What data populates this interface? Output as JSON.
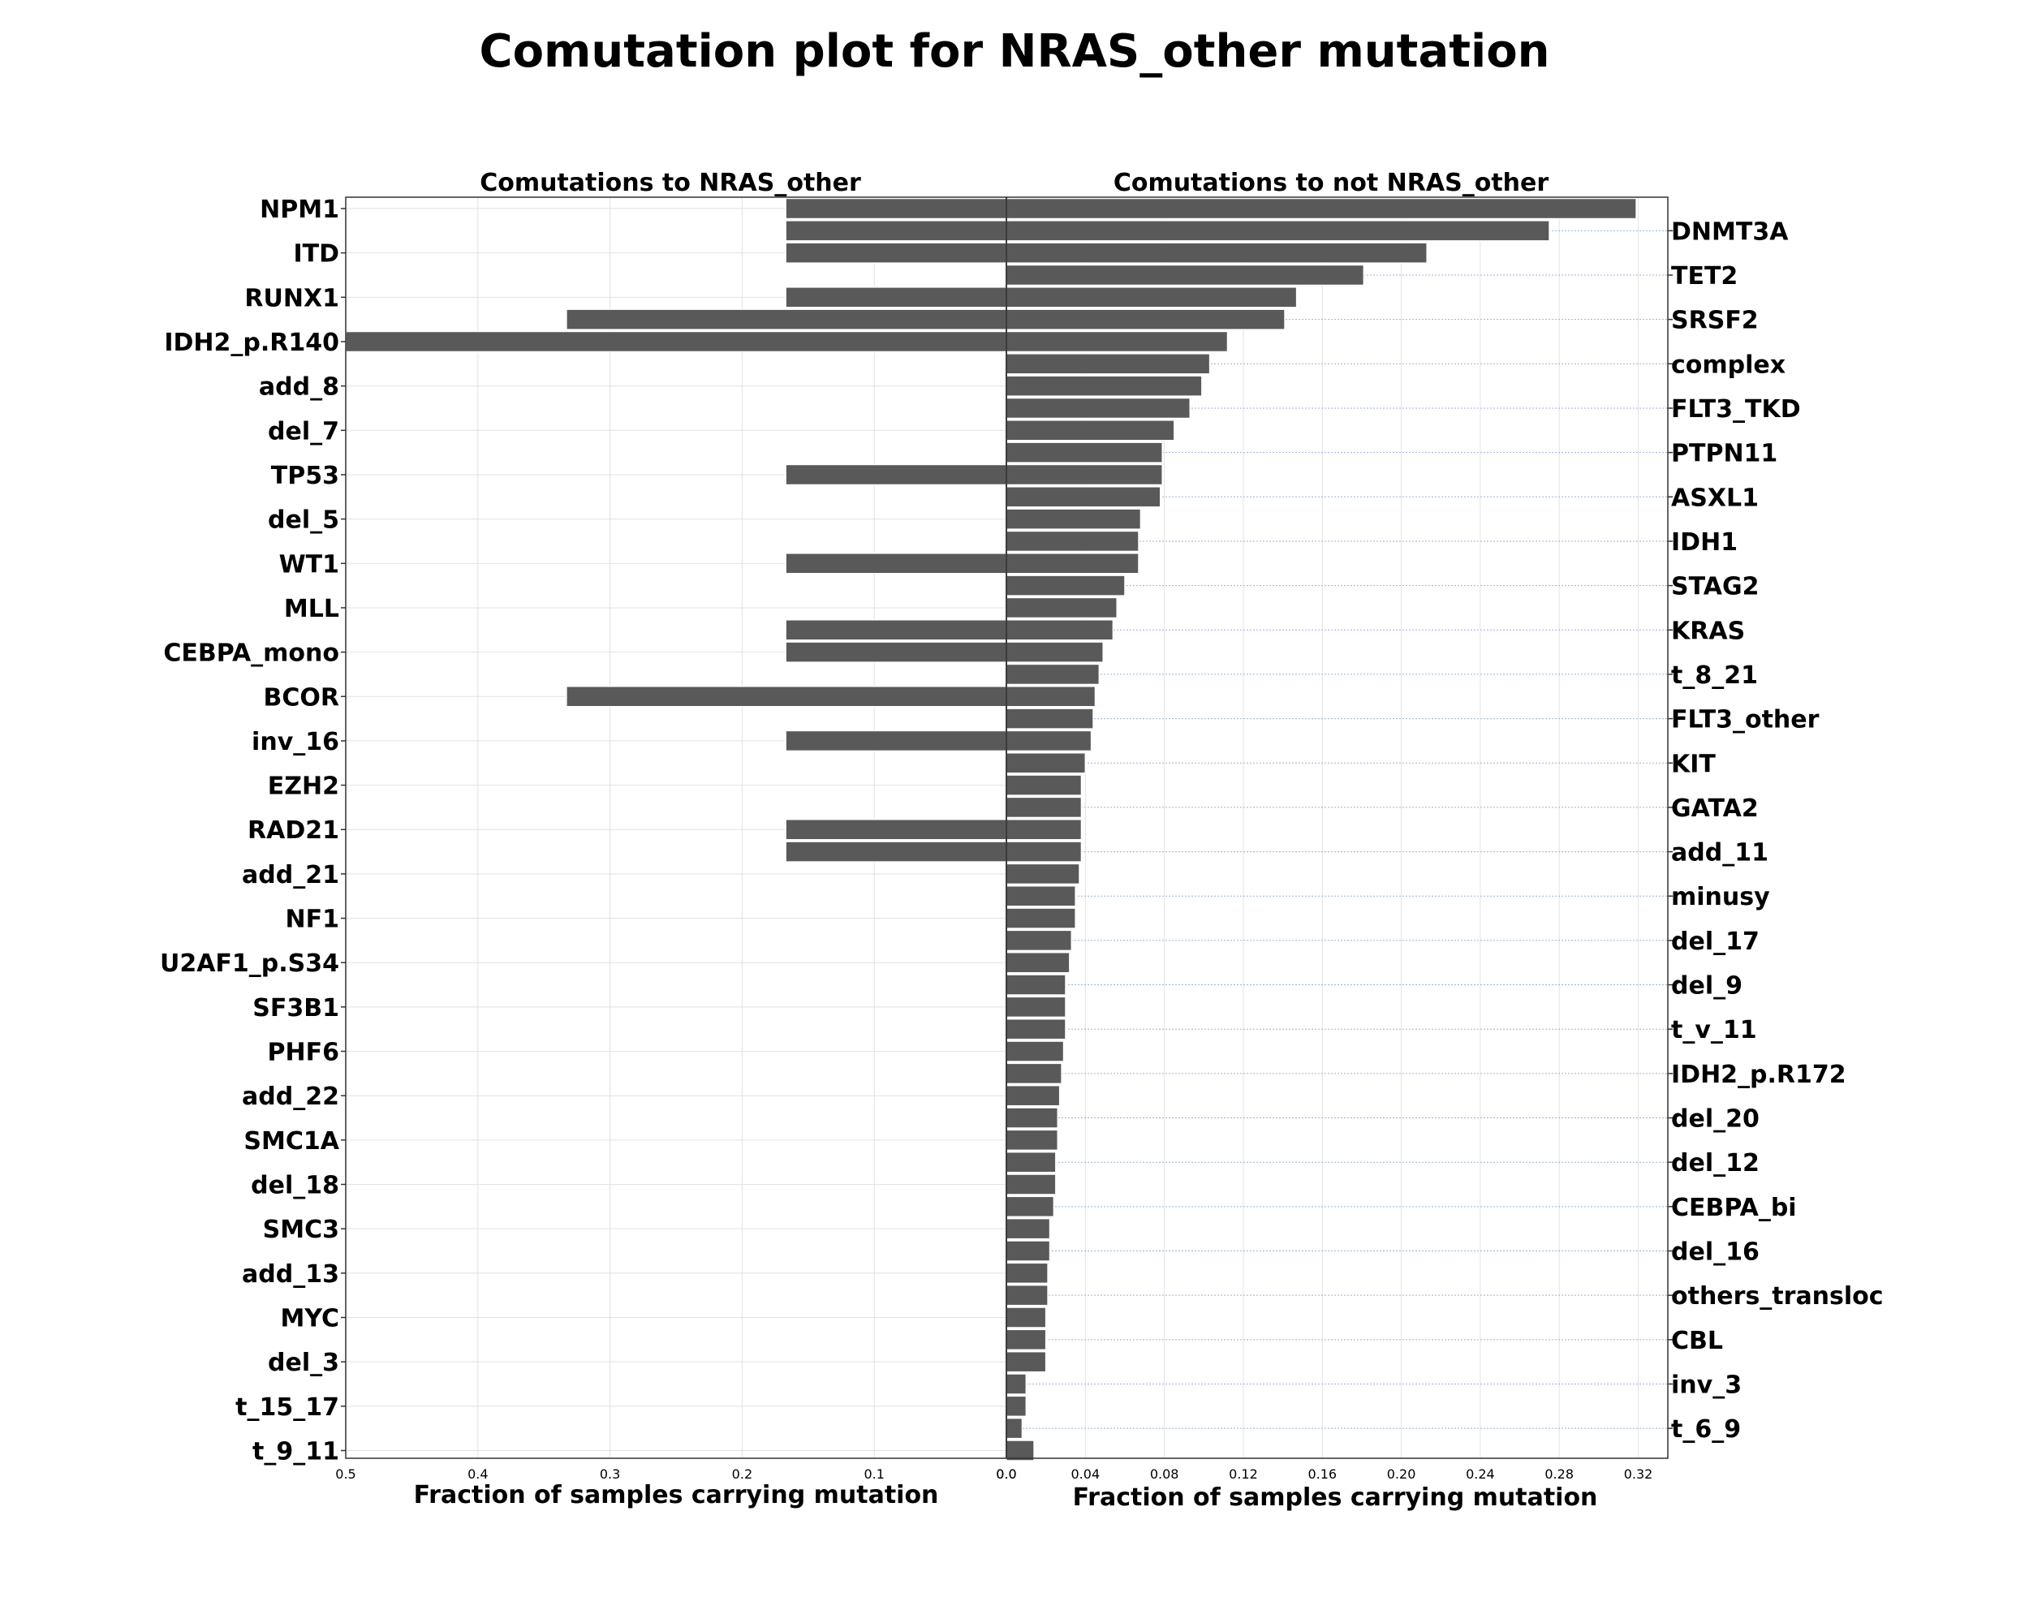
{
  "chart_data": {
    "type": "bar",
    "title": "Comutation plot for NRAS_other mutation",
    "panels": [
      {
        "name": "left",
        "subtitle": "Comutations to NRAS_other",
        "xlabel": "Fraction of samples carrying mutation",
        "xlim": [
          0.5,
          0.0
        ],
        "ticks": [
          0.5,
          0.4,
          0.3,
          0.2,
          0.1,
          0.0
        ],
        "tick_labels": [
          "0.5",
          "0.4",
          "0.3",
          "0.2",
          "0.1",
          "0.0"
        ],
        "labels": [
          "NPM1",
          "ITD",
          "RUNX1",
          "IDH2_p.R140",
          "add_8",
          "del_7",
          "TP53",
          "del_5",
          "WT1",
          "MLL",
          "CEBPA_mono",
          "BCOR",
          "inv_16",
          "EZH2",
          "RAD21",
          "add_21",
          "NF1",
          "U2AF1_p.S34",
          "SF3B1",
          "PHF6",
          "add_22",
          "SMC1A",
          "del_18",
          "SMC3",
          "add_13",
          "MYC",
          "del_3",
          "t_15_17",
          "t_9_11"
        ]
      },
      {
        "name": "right",
        "subtitle": "Comutations to not NRAS_other",
        "xlabel": "Fraction of samples carrying mutation",
        "xlim": [
          0.0,
          0.335
        ],
        "ticks": [
          0.0,
          0.04,
          0.08,
          0.12,
          0.16,
          0.2,
          0.24,
          0.28,
          0.32
        ],
        "tick_labels": [
          "0.0",
          "0.04",
          "0.08",
          "0.12",
          "0.16",
          "0.20",
          "0.24",
          "0.28",
          "0.32"
        ],
        "labels": [
          "DNMT3A",
          "TET2",
          "SRSF2",
          "complex",
          "FLT3_TKD",
          "PTPN11",
          "ASXL1",
          "IDH1",
          "STAG2",
          "KRAS",
          "t_8_21",
          "FLT3_other",
          "KIT",
          "GATA2",
          "add_11",
          "minusy",
          "del_17",
          "del_9",
          "t_v_11",
          "IDH2_p.R172",
          "del_20",
          "del_12",
          "CEBPA_bi",
          "del_16",
          "others_transloc",
          "CBL",
          "inv_3",
          "t_6_9"
        ]
      }
    ],
    "genes": [
      "NPM1",
      "DNMT3A",
      "ITD",
      "TET2",
      "RUNX1",
      "SRSF2",
      "IDH2_p.R140",
      "complex",
      "add_8",
      "FLT3_TKD",
      "del_7",
      "PTPN11",
      "TP53",
      "ASXL1",
      "del_5",
      "IDH1",
      "WT1",
      "STAG2",
      "MLL",
      "KRAS",
      "CEBPA_mono",
      "t_8_21",
      "BCOR",
      "FLT3_other",
      "inv_16",
      "KIT",
      "EZH2",
      "GATA2",
      "RAD21",
      "add_11",
      "add_21",
      "minusy",
      "NF1",
      "del_17",
      "U2AF1_p.S34",
      "del_9",
      "SF3B1",
      "t_v_11",
      "PHF6",
      "IDH2_p.R172",
      "add_22",
      "del_20",
      "SMC1A",
      "del_12",
      "del_18",
      "CEBPA_bi",
      "SMC3",
      "del_16",
      "add_13",
      "others_transloc",
      "MYC",
      "CBL",
      "del_3",
      "inv_3",
      "t_15_17",
      "t_6_9",
      "t_9_11"
    ],
    "series": [
      {
        "name": "NRAS_other",
        "values": [
          0.167,
          0.167,
          0.167,
          0,
          0.167,
          0.333,
          0.5,
          0,
          0,
          0,
          0,
          0,
          0.167,
          0,
          0,
          0,
          0.167,
          0,
          0,
          0.167,
          0.167,
          0,
          0.333,
          0,
          0.167,
          0,
          0,
          0,
          0.167,
          0.167,
          0,
          0,
          0,
          0,
          0,
          0,
          0,
          0,
          0,
          0,
          0,
          0,
          0,
          0,
          0,
          0,
          0,
          0,
          0,
          0,
          0,
          0,
          0,
          0,
          0,
          0,
          0
        ]
      },
      {
        "name": "not NRAS_other",
        "values": [
          0.319,
          0.275,
          0.213,
          0.181,
          0.147,
          0.141,
          0.112,
          0.103,
          0.099,
          0.093,
          0.085,
          0.079,
          0.079,
          0.078,
          0.068,
          0.067,
          0.067,
          0.06,
          0.056,
          0.054,
          0.049,
          0.047,
          0.045,
          0.044,
          0.043,
          0.04,
          0.038,
          0.038,
          0.038,
          0.038,
          0.037,
          0.035,
          0.035,
          0.033,
          0.032,
          0.03,
          0.03,
          0.03,
          0.029,
          0.028,
          0.027,
          0.026,
          0.026,
          0.025,
          0.025,
          0.024,
          0.022,
          0.022,
          0.021,
          0.021,
          0.02,
          0.02,
          0.02,
          0.01,
          0.01,
          0.008,
          0.014
        ]
      }
    ],
    "grid": true
  }
}
